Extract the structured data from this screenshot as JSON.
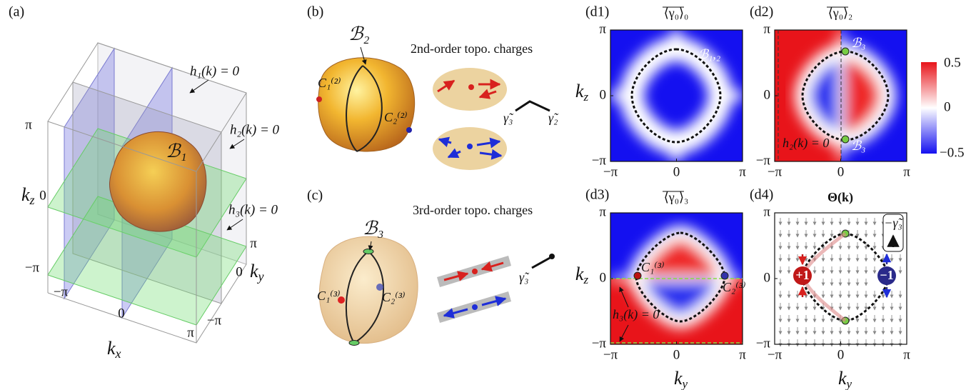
{
  "panel_a": {
    "label": "(a)",
    "h1": "h₁(k) = 0",
    "h2": "h₂(k) = 0",
    "h3": "h₃(k) = 0",
    "surface": "ℬ₁",
    "kz": {
      "base": "k",
      "sub": "z"
    },
    "kx": {
      "base": "k",
      "sub": "x"
    },
    "ky": {
      "base": "k",
      "sub": "y"
    },
    "kz_ticks": [
      "π",
      "0",
      "−π"
    ],
    "kx_ticks": [
      "−π",
      "0",
      "π"
    ],
    "ky_ticks": [
      "π",
      "0",
      "−π"
    ]
  },
  "panel_b": {
    "label": "(b)",
    "surface": "ℬ₂",
    "title": "2nd-order topo. charges",
    "charge1": "C₁⁽²⁾",
    "charge2": "C₂⁽²⁾",
    "gamma3": "γ̃₃",
    "gamma2": "γ̃₂"
  },
  "panel_c": {
    "label": "(c)",
    "surface": "ℬ₃",
    "title": "3rd-order topo. charges",
    "charge1": "C₁⁽³⁾",
    "charge2": "C₂⁽³⁾",
    "gamma3": "γ̃₃"
  },
  "d_axes": {
    "x_ticks": [
      "−π",
      "0",
      "π"
    ],
    "y_ticks": [
      "π",
      "0",
      "−π"
    ],
    "kz": {
      "base": "k",
      "sub": "z"
    },
    "ky": {
      "base": "k",
      "sub": "y"
    }
  },
  "panel_d1": {
    "label": "(d1)",
    "title": "⟨γ₀⟩₀",
    "surface": "ℬ₁,₂"
  },
  "panel_d2": {
    "label": "(d2)",
    "title": "⟨γ₀⟩₂",
    "surface_top": "ℬ₃",
    "surface_bottom": "ℬ₃",
    "plane": "h₂(k) = 0",
    "colorbar_ticks": [
      "0.5",
      "0",
      "−0.5"
    ]
  },
  "panel_d3": {
    "label": "(d3)",
    "title": "⟨γ₀⟩₃",
    "charge1": "C₁⁽³⁾",
    "charge2": "C₂⁽³⁾",
    "plane": "h₃(k) = 0"
  },
  "panel_d4": {
    "label": "(d4)",
    "title": "Θ(k)",
    "plus": "+1",
    "minus": "−1",
    "gamma": "−γ̃₃"
  }
}
